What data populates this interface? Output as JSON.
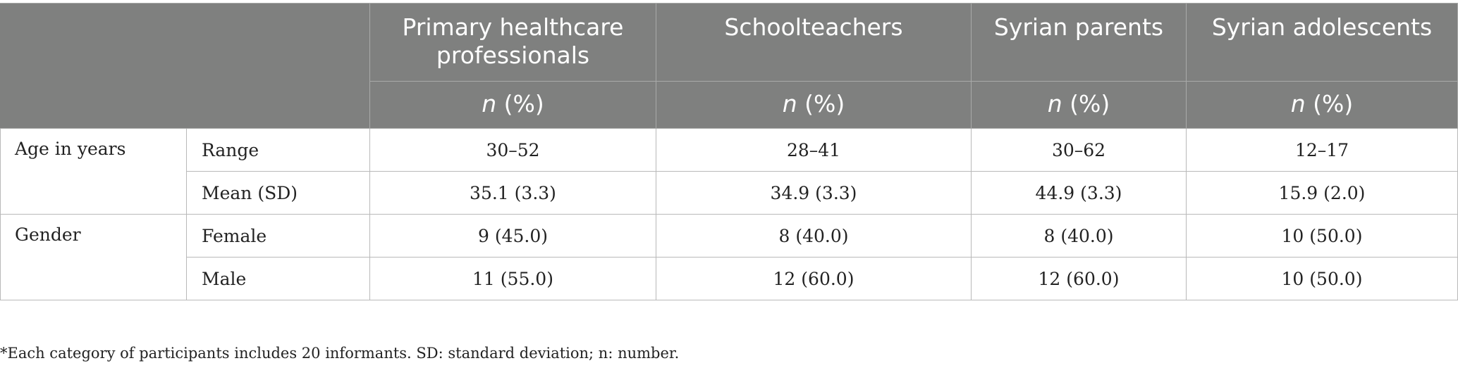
{
  "table": {
    "columns": [
      {
        "header": "Primary healthcare professionals",
        "subheader_italic": "n",
        "subheader_rest": " (%)"
      },
      {
        "header": "Schoolteachers",
        "subheader_italic": "n",
        "subheader_rest": " (%)"
      },
      {
        "header": "Syrian parents",
        "subheader_italic": "n",
        "subheader_rest": " (%)"
      },
      {
        "header": "Syrian adolescents",
        "subheader_italic": "n",
        "subheader_rest": " (%)"
      }
    ],
    "groups": [
      {
        "label": "Age in years",
        "rows": [
          {
            "label": "Range",
            "values": [
              "30–52",
              "28–41",
              "30–62",
              "12–17"
            ]
          },
          {
            "label": "Mean (SD)",
            "values": [
              "35.1 (3.3)",
              "34.9 (3.3)",
              "44.9 (3.3)",
              "15.9 (2.0)"
            ]
          }
        ]
      },
      {
        "label": "Gender",
        "rows": [
          {
            "label": "Female",
            "values": [
              "9 (45.0)",
              "8 (40.0)",
              "8 (40.0)",
              "10 (50.0)"
            ]
          },
          {
            "label": "Male",
            "values": [
              "11 (55.0)",
              "12 (60.0)",
              "12 (60.0)",
              "10 (50.0)"
            ]
          }
        ]
      }
    ]
  },
  "footnote": "*Each category of participants includes 20 informants. SD: standard deviation; n: number."
}
